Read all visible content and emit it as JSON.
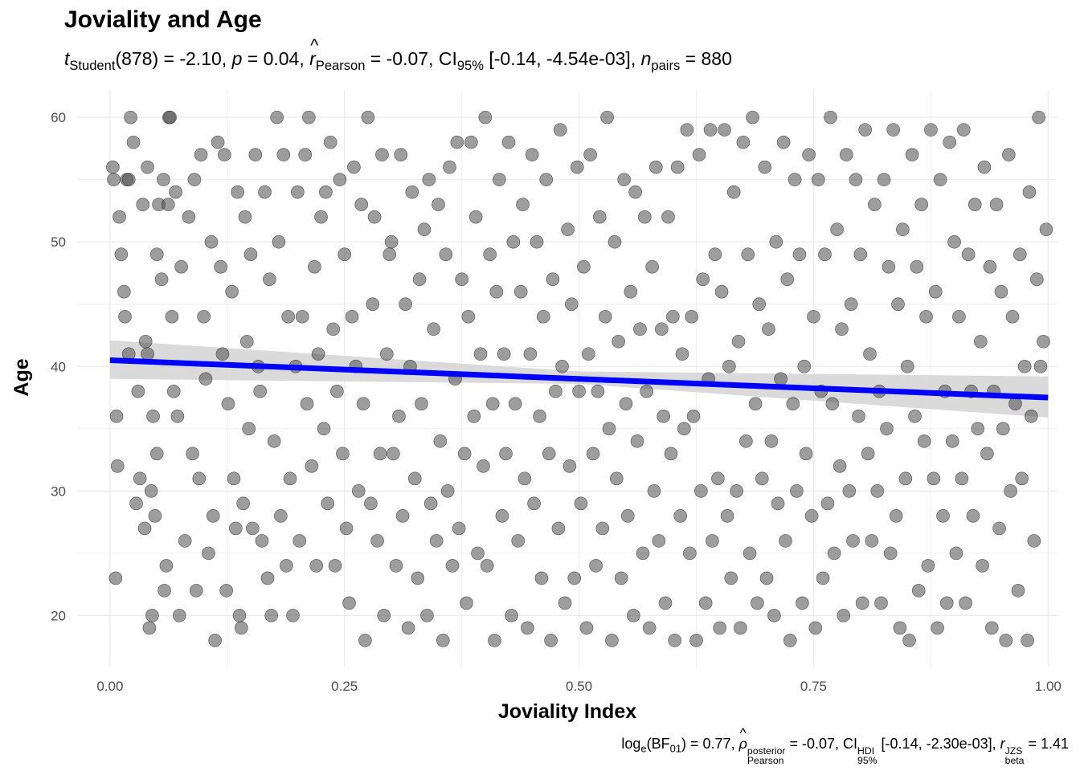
{
  "title": "Joviality and Age",
  "subtitle": {
    "t": "t",
    "t_sub": "Student",
    "df": "(878)",
    "t_val": " = -2.10, ",
    "p": "p",
    "p_val": " = 0.04, ",
    "r": "r",
    "r_sub": "Pearson",
    "r_val": " = -0.07, CI",
    "ci_sub": "95%",
    "ci_val": " [-0.14, -4.54e-03], ",
    "n": "n",
    "n_sub": "pairs",
    "n_val": " = 880"
  },
  "caption": {
    "log": "log",
    "log_sub": "e",
    "bf": "(BF",
    "bf_sub": "01",
    "bf_val": ") = 0.77, ",
    "rho": "ρ",
    "rho_sup": "posterior",
    "rho_sub": "Pearson",
    "rho_val": " = -0.07, CI",
    "ci_sup": "HDI",
    "ci_sub": "95%",
    "ci_val": " [-0.14, -2.30e-03], ",
    "r": "r",
    "r_sup": "JZS",
    "r_sub": "beta",
    "r_val": " = 1.41"
  },
  "colors": {
    "point_fill": "#4d4d4d",
    "fit_line": "#0000ff",
    "ci_band": "#d3d3d3",
    "grid": "#ebebeb"
  },
  "chart_data": {
    "type": "scatter",
    "title": "Joviality and Age",
    "xlabel": "Joviality Index",
    "ylabel": "Age",
    "xlim": [
      -0.035,
      1.01
    ],
    "ylim": [
      15.9,
      62.2
    ],
    "xticks": [
      0.0,
      0.25,
      0.5,
      0.75,
      1.0
    ],
    "xtick_labels": [
      "0.00",
      "0.25",
      "0.50",
      "0.75",
      "1.00"
    ],
    "yticks": [
      20,
      30,
      40,
      50,
      60
    ],
    "ytick_labels": [
      "20",
      "30",
      "40",
      "50",
      "60"
    ],
    "grid": true,
    "fit": {
      "x": [
        0.0,
        1.0
      ],
      "y": [
        40.5,
        37.5
      ]
    },
    "ci_band": {
      "x": [
        0.0,
        0.5,
        1.0
      ],
      "lower": [
        39.0,
        38.6,
        35.9
      ],
      "upper": [
        42.1,
        39.6,
        39.2
      ]
    },
    "n_points": 880,
    "points": [
      [
        0.003,
        56
      ],
      [
        0.004,
        55
      ],
      [
        0.006,
        23
      ],
      [
        0.007,
        36
      ],
      [
        0.008,
        32
      ],
      [
        0.01,
        52
      ],
      [
        0.012,
        49
      ],
      [
        0.015,
        46
      ],
      [
        0.016,
        44
      ],
      [
        0.018,
        55
      ],
      [
        0.02,
        41
      ],
      [
        0.02,
        55
      ],
      [
        0.022,
        60
      ],
      [
        0.025,
        58
      ],
      [
        0.028,
        29
      ],
      [
        0.03,
        38
      ],
      [
        0.032,
        31
      ],
      [
        0.035,
        53
      ],
      [
        0.037,
        27
      ],
      [
        0.038,
        42
      ],
      [
        0.04,
        56
      ],
      [
        0.04,
        41
      ],
      [
        0.042,
        19
      ],
      [
        0.044,
        30
      ],
      [
        0.045,
        20
      ],
      [
        0.046,
        36
      ],
      [
        0.048,
        28
      ],
      [
        0.05,
        33
      ],
      [
        0.05,
        49
      ],
      [
        0.052,
        53
      ],
      [
        0.055,
        47
      ],
      [
        0.057,
        55
      ],
      [
        0.058,
        22
      ],
      [
        0.06,
        24
      ],
      [
        0.062,
        53
      ],
      [
        0.063,
        60
      ],
      [
        0.064,
        60
      ],
      [
        0.066,
        44
      ],
      [
        0.068,
        38
      ],
      [
        0.07,
        54
      ],
      [
        0.072,
        36
      ],
      [
        0.074,
        20
      ],
      [
        0.076,
        48
      ],
      [
        0.08,
        26
      ],
      [
        0.084,
        52
      ],
      [
        0.088,
        33
      ],
      [
        0.09,
        55
      ],
      [
        0.092,
        22
      ],
      [
        0.095,
        31
      ],
      [
        0.097,
        57
      ],
      [
        0.1,
        44
      ],
      [
        0.102,
        39
      ],
      [
        0.105,
        25
      ],
      [
        0.108,
        50
      ],
      [
        0.11,
        28
      ],
      [
        0.112,
        18
      ],
      [
        0.115,
        58
      ],
      [
        0.118,
        48
      ],
      [
        0.12,
        41
      ],
      [
        0.122,
        57
      ],
      [
        0.124,
        22
      ],
      [
        0.126,
        37
      ],
      [
        0.13,
        46
      ],
      [
        0.132,
        31
      ],
      [
        0.134,
        27
      ],
      [
        0.136,
        54
      ],
      [
        0.138,
        20
      ],
      [
        0.14,
        19
      ],
      [
        0.142,
        29
      ],
      [
        0.144,
        52
      ],
      [
        0.146,
        42
      ],
      [
        0.148,
        35
      ],
      [
        0.15,
        49
      ],
      [
        0.152,
        27
      ],
      [
        0.155,
        57
      ],
      [
        0.158,
        40
      ],
      [
        0.16,
        38
      ],
      [
        0.162,
        26
      ],
      [
        0.165,
        54
      ],
      [
        0.168,
        23
      ],
      [
        0.17,
        47
      ],
      [
        0.172,
        20
      ],
      [
        0.175,
        34
      ],
      [
        0.178,
        60
      ],
      [
        0.18,
        50
      ],
      [
        0.182,
        28
      ],
      [
        0.185,
        57
      ],
      [
        0.188,
        24
      ],
      [
        0.19,
        44
      ],
      [
        0.192,
        31
      ],
      [
        0.195,
        20
      ],
      [
        0.198,
        40
      ],
      [
        0.2,
        54
      ],
      [
        0.202,
        26
      ],
      [
        0.205,
        44
      ],
      [
        0.208,
        57
      ],
      [
        0.21,
        37
      ],
      [
        0.212,
        60
      ],
      [
        0.215,
        32
      ],
      [
        0.218,
        48
      ],
      [
        0.22,
        24
      ],
      [
        0.222,
        41
      ],
      [
        0.225,
        52
      ],
      [
        0.228,
        35
      ],
      [
        0.23,
        54
      ],
      [
        0.232,
        29
      ],
      [
        0.235,
        58
      ],
      [
        0.238,
        43
      ],
      [
        0.24,
        24
      ],
      [
        0.242,
        38
      ],
      [
        0.245,
        55
      ],
      [
        0.248,
        33
      ],
      [
        0.25,
        49
      ],
      [
        0.252,
        27
      ],
      [
        0.255,
        21
      ],
      [
        0.258,
        44
      ],
      [
        0.26,
        56
      ],
      [
        0.262,
        40
      ],
      [
        0.265,
        30
      ],
      [
        0.268,
        53
      ],
      [
        0.27,
        37
      ],
      [
        0.272,
        18
      ],
      [
        0.275,
        60
      ],
      [
        0.278,
        29
      ],
      [
        0.28,
        45
      ],
      [
        0.282,
        52
      ],
      [
        0.285,
        26
      ],
      [
        0.288,
        33
      ],
      [
        0.29,
        57
      ],
      [
        0.292,
        20
      ],
      [
        0.295,
        41
      ],
      [
        0.298,
        49
      ],
      [
        0.3,
        50
      ],
      [
        0.302,
        33
      ],
      [
        0.305,
        24
      ],
      [
        0.308,
        36
      ],
      [
        0.31,
        57
      ],
      [
        0.312,
        28
      ],
      [
        0.315,
        45
      ],
      [
        0.318,
        19
      ],
      [
        0.32,
        40
      ],
      [
        0.322,
        54
      ],
      [
        0.325,
        31
      ],
      [
        0.328,
        23
      ],
      [
        0.33,
        47
      ],
      [
        0.332,
        37
      ],
      [
        0.335,
        51
      ],
      [
        0.338,
        20
      ],
      [
        0.34,
        55
      ],
      [
        0.342,
        29
      ],
      [
        0.345,
        43
      ],
      [
        0.348,
        26
      ],
      [
        0.35,
        53
      ],
      [
        0.352,
        34
      ],
      [
        0.355,
        18
      ],
      [
        0.358,
        49
      ],
      [
        0.36,
        30
      ],
      [
        0.362,
        56
      ],
      [
        0.365,
        24
      ],
      [
        0.368,
        39
      ],
      [
        0.37,
        58
      ],
      [
        0.372,
        27
      ],
      [
        0.375,
        47
      ],
      [
        0.378,
        33
      ],
      [
        0.38,
        21
      ],
      [
        0.382,
        44
      ],
      [
        0.385,
        58
      ],
      [
        0.388,
        36
      ],
      [
        0.39,
        52
      ],
      [
        0.392,
        25
      ],
      [
        0.395,
        41
      ],
      [
        0.398,
        32
      ],
      [
        0.4,
        60
      ],
      [
        0.402,
        24
      ],
      [
        0.405,
        49
      ],
      [
        0.408,
        37
      ],
      [
        0.41,
        18
      ],
      [
        0.412,
        46
      ],
      [
        0.415,
        55
      ],
      [
        0.418,
        28
      ],
      [
        0.42,
        41
      ],
      [
        0.422,
        33
      ],
      [
        0.425,
        58
      ],
      [
        0.428,
        20
      ],
      [
        0.43,
        50
      ],
      [
        0.432,
        37
      ],
      [
        0.435,
        26
      ],
      [
        0.438,
        46
      ],
      [
        0.44,
        53
      ],
      [
        0.442,
        31
      ],
      [
        0.445,
        19
      ],
      [
        0.448,
        41
      ],
      [
        0.45,
        57
      ],
      [
        0.452,
        29
      ],
      [
        0.455,
        50
      ],
      [
        0.458,
        36
      ],
      [
        0.46,
        23
      ],
      [
        0.462,
        44
      ],
      [
        0.465,
        55
      ],
      [
        0.468,
        33
      ],
      [
        0.47,
        18
      ],
      [
        0.472,
        47
      ],
      [
        0.475,
        38
      ],
      [
        0.478,
        27
      ],
      [
        0.48,
        59
      ],
      [
        0.482,
        40
      ],
      [
        0.485,
        21
      ],
      [
        0.488,
        51
      ],
      [
        0.49,
        32
      ],
      [
        0.492,
        45
      ],
      [
        0.495,
        23
      ],
      [
        0.498,
        56
      ],
      [
        0.5,
        38
      ],
      [
        0.502,
        29
      ],
      [
        0.505,
        48
      ],
      [
        0.508,
        19
      ],
      [
        0.51,
        41
      ],
      [
        0.512,
        57
      ],
      [
        0.515,
        33
      ],
      [
        0.518,
        24
      ],
      [
        0.52,
        38
      ],
      [
        0.522,
        52
      ],
      [
        0.525,
        27
      ],
      [
        0.528,
        44
      ],
      [
        0.53,
        60
      ],
      [
        0.532,
        35
      ],
      [
        0.535,
        18
      ],
      [
        0.538,
        50
      ],
      [
        0.54,
        31
      ],
      [
        0.542,
        42
      ],
      [
        0.545,
        23
      ],
      [
        0.548,
        55
      ],
      [
        0.55,
        37
      ],
      [
        0.552,
        28
      ],
      [
        0.555,
        46
      ],
      [
        0.558,
        20
      ],
      [
        0.56,
        54
      ],
      [
        0.562,
        34
      ],
      [
        0.565,
        43
      ],
      [
        0.568,
        25
      ],
      [
        0.57,
        52
      ],
      [
        0.572,
        38
      ],
      [
        0.575,
        19
      ],
      [
        0.578,
        48
      ],
      [
        0.58,
        30
      ],
      [
        0.582,
        56
      ],
      [
        0.585,
        26
      ],
      [
        0.588,
        43
      ],
      [
        0.59,
        36
      ],
      [
        0.592,
        21
      ],
      [
        0.595,
        52
      ],
      [
        0.598,
        33
      ],
      [
        0.6,
        44
      ],
      [
        0.602,
        18
      ],
      [
        0.605,
        56
      ],
      [
        0.608,
        28
      ],
      [
        0.61,
        41
      ],
      [
        0.612,
        35
      ],
      [
        0.615,
        59
      ],
      [
        0.618,
        25
      ],
      [
        0.62,
        44
      ],
      [
        0.622,
        36
      ],
      [
        0.625,
        18
      ],
      [
        0.628,
        57
      ],
      [
        0.63,
        30
      ],
      [
        0.632,
        47
      ],
      [
        0.635,
        21
      ],
      [
        0.638,
        39
      ],
      [
        0.64,
        59
      ],
      [
        0.642,
        26
      ],
      [
        0.645,
        49
      ],
      [
        0.648,
        31
      ],
      [
        0.65,
        19
      ],
      [
        0.652,
        46
      ],
      [
        0.655,
        59
      ],
      [
        0.658,
        28
      ],
      [
        0.66,
        40
      ],
      [
        0.662,
        23
      ],
      [
        0.665,
        54
      ],
      [
        0.668,
        30
      ],
      [
        0.67,
        42
      ],
      [
        0.672,
        19
      ],
      [
        0.675,
        58
      ],
      [
        0.678,
        34
      ],
      [
        0.68,
        49
      ],
      [
        0.682,
        25
      ],
      [
        0.685,
        60
      ],
      [
        0.688,
        37
      ],
      [
        0.69,
        21
      ],
      [
        0.692,
        45
      ],
      [
        0.695,
        31
      ],
      [
        0.698,
        56
      ],
      [
        0.7,
        23
      ],
      [
        0.702,
        43
      ],
      [
        0.705,
        34
      ],
      [
        0.708,
        20
      ],
      [
        0.71,
        50
      ],
      [
        0.712,
        29
      ],
      [
        0.715,
        39
      ],
      [
        0.718,
        58
      ],
      [
        0.72,
        26
      ],
      [
        0.722,
        47
      ],
      [
        0.725,
        18
      ],
      [
        0.728,
        37
      ],
      [
        0.73,
        55
      ],
      [
        0.732,
        30
      ],
      [
        0.735,
        49
      ],
      [
        0.738,
        21
      ],
      [
        0.74,
        40
      ],
      [
        0.742,
        33
      ],
      [
        0.745,
        57
      ],
      [
        0.748,
        28
      ],
      [
        0.75,
        44
      ],
      [
        0.752,
        19
      ],
      [
        0.755,
        55
      ],
      [
        0.758,
        38
      ],
      [
        0.76,
        23
      ],
      [
        0.762,
        49
      ],
      [
        0.765,
        29
      ],
      [
        0.768,
        60
      ],
      [
        0.77,
        37
      ],
      [
        0.772,
        25
      ],
      [
        0.775,
        51
      ],
      [
        0.778,
        32
      ],
      [
        0.78,
        43
      ],
      [
        0.782,
        20
      ],
      [
        0.785,
        57
      ],
      [
        0.788,
        30
      ],
      [
        0.79,
        45
      ],
      [
        0.792,
        26
      ],
      [
        0.795,
        55
      ],
      [
        0.798,
        36
      ],
      [
        0.8,
        49
      ],
      [
        0.802,
        21
      ],
      [
        0.805,
        59
      ],
      [
        0.808,
        33
      ],
      [
        0.81,
        41
      ],
      [
        0.812,
        26
      ],
      [
        0.815,
        53
      ],
      [
        0.818,
        30
      ],
      [
        0.82,
        38
      ],
      [
        0.822,
        21
      ],
      [
        0.825,
        55
      ],
      [
        0.828,
        35
      ],
      [
        0.83,
        48
      ],
      [
        0.832,
        25
      ],
      [
        0.835,
        59
      ],
      [
        0.838,
        28
      ],
      [
        0.84,
        45
      ],
      [
        0.842,
        19
      ],
      [
        0.845,
        51
      ],
      [
        0.848,
        31
      ],
      [
        0.85,
        40
      ],
      [
        0.852,
        18
      ],
      [
        0.855,
        57
      ],
      [
        0.858,
        36
      ],
      [
        0.86,
        48
      ],
      [
        0.862,
        22
      ],
      [
        0.865,
        53
      ],
      [
        0.868,
        34
      ],
      [
        0.87,
        44
      ],
      [
        0.872,
        24
      ],
      [
        0.875,
        59
      ],
      [
        0.878,
        31
      ],
      [
        0.88,
        46
      ],
      [
        0.882,
        19
      ],
      [
        0.885,
        55
      ],
      [
        0.888,
        28
      ],
      [
        0.89,
        38
      ],
      [
        0.892,
        21
      ],
      [
        0.895,
        58
      ],
      [
        0.898,
        34
      ],
      [
        0.9,
        50
      ],
      [
        0.902,
        25
      ],
      [
        0.905,
        44
      ],
      [
        0.908,
        31
      ],
      [
        0.91,
        59
      ],
      [
        0.912,
        21
      ],
      [
        0.915,
        49
      ],
      [
        0.918,
        38
      ],
      [
        0.92,
        28
      ],
      [
        0.922,
        53
      ],
      [
        0.925,
        35
      ],
      [
        0.928,
        42
      ],
      [
        0.93,
        24
      ],
      [
        0.932,
        56
      ],
      [
        0.935,
        33
      ],
      [
        0.938,
        48
      ],
      [
        0.94,
        19
      ],
      [
        0.942,
        38
      ],
      [
        0.945,
        53
      ],
      [
        0.948,
        27
      ],
      [
        0.95,
        46
      ],
      [
        0.952,
        35
      ],
      [
        0.955,
        18
      ],
      [
        0.958,
        57
      ],
      [
        0.96,
        30
      ],
      [
        0.962,
        44
      ],
      [
        0.965,
        37
      ],
      [
        0.968,
        22
      ],
      [
        0.97,
        49
      ],
      [
        0.972,
        31
      ],
      [
        0.975,
        40
      ],
      [
        0.978,
        18
      ],
      [
        0.98,
        54
      ],
      [
        0.982,
        36
      ],
      [
        0.985,
        26
      ],
      [
        0.988,
        47
      ],
      [
        0.99,
        60
      ],
      [
        0.992,
        40
      ],
      [
        0.995,
        42
      ],
      [
        0.998,
        51
      ]
    ]
  }
}
